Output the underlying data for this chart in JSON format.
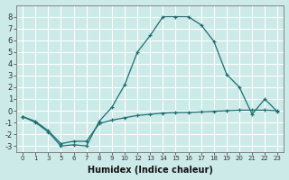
{
  "xlabel": "Humidex (Indice chaleur)",
  "bg_color": "#cceae7",
  "grid_color": "#ffffff",
  "line_color": "#1a7070",
  "xtick_labels": [
    "0",
    "1",
    "3",
    "5",
    "6",
    "7",
    "8",
    "9",
    "10",
    "12",
    "13",
    "14",
    "15",
    "16",
    "17",
    "18",
    "19",
    "20",
    "21",
    "22",
    "23"
  ],
  "line1_y": [
    -0.5,
    -1.0,
    -1.8,
    -3.0,
    -2.9,
    -3.0,
    -0.9,
    0.3,
    2.2,
    5.0,
    6.4,
    8.0,
    8.0,
    8.0,
    7.3,
    5.9,
    3.1,
    2.0,
    -0.3,
    1.0,
    -0.1
  ],
  "line2_y": [
    -0.5,
    -0.9,
    -1.7,
    -2.8,
    -2.6,
    -2.6,
    -1.1,
    -0.8,
    -0.6,
    -0.4,
    -0.3,
    -0.2,
    -0.15,
    -0.15,
    -0.1,
    -0.05,
    0.0,
    0.05,
    0.05,
    0.05,
    0.0
  ],
  "ylim": [
    -3.5,
    9.0
  ],
  "yticks": [
    -3,
    -2,
    -1,
    0,
    1,
    2,
    3,
    4,
    5,
    6,
    7,
    8
  ],
  "marker": "+"
}
